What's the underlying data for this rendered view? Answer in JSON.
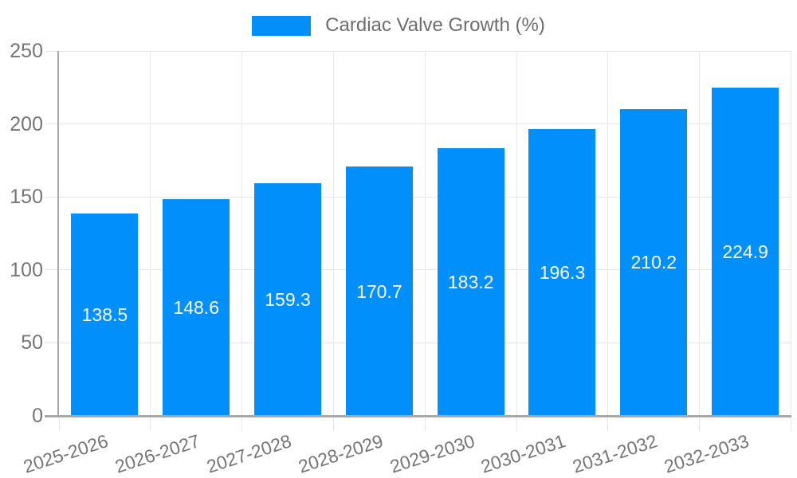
{
  "chart_data": {
    "type": "bar",
    "title": "Cardiac Valve Growth (%)",
    "legend": {
      "position": "top",
      "label": "Cardiac Valve Growth (%)"
    },
    "categories": [
      "2025-2026",
      "2026-2027",
      "2027-2028",
      "2028-2029",
      "2029-2030",
      "2030-2031",
      "2031-2032",
      "2032-2033"
    ],
    "series": [
      {
        "name": "Cardiac Valve Growth (%)",
        "color": "#008FFB",
        "values": [
          138.5,
          148.6,
          159.3,
          170.7,
          183.2,
          196.3,
          210.2,
          224.9
        ]
      }
    ],
    "value_labels": [
      "138.5",
      "148.6",
      "159.3",
      "170.7",
      "183.2",
      "196.3",
      "210.2",
      "224.9"
    ],
    "xlabel": "",
    "ylabel": "",
    "ylim": [
      0,
      250
    ],
    "yticks": [
      0,
      50,
      100,
      150,
      200,
      250
    ],
    "grid": true,
    "x_label_rotation_deg": -18
  },
  "colors": {
    "bar": "#008FFB",
    "grid": "#e7e7e7",
    "axis": "#a8a8a8",
    "tick_text": "#757575",
    "legend_text": "#6d6d6d",
    "value_label_text": "#ffffff",
    "background": "#ffffff"
  }
}
